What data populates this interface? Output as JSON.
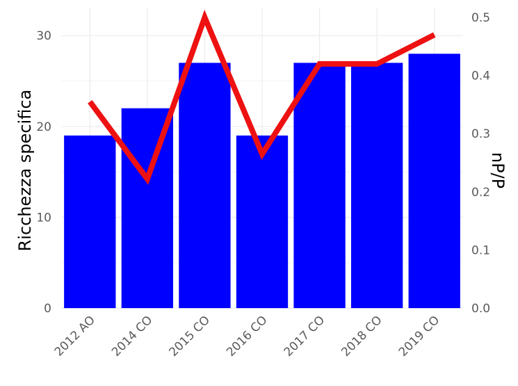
{
  "chart_data": {
    "type": "bar",
    "categories": [
      "2012 AO",
      "2014 CO",
      "2015 CO",
      "2016 CO",
      "2017 CO",
      "2018 CO",
      "2019 CO"
    ],
    "series": [
      {
        "values": [
          19,
          22,
          27,
          19,
          27,
          27,
          28
        ],
        "axis": "left",
        "kind": "bar",
        "color": "#0000ff"
      },
      {
        "values": [
          0.355,
          0.222,
          0.5,
          0.265,
          0.42,
          0.42,
          0.47
        ],
        "axis": "right",
        "kind": "line",
        "color": "#ee1111"
      }
    ],
    "ylabel": "Ricchezza specifica",
    "ylabel_right": "nP/P",
    "ylim": [
      0,
      33
    ],
    "ylim_right": [
      0,
      0.5156
    ],
    "yticks": [
      "0",
      "10",
      "20",
      "30"
    ],
    "yticks_values": [
      0,
      10,
      20,
      30
    ],
    "yticks_right": [
      "0.0",
      "0.1",
      "0.2",
      "0.3",
      "0.4",
      "0.5"
    ],
    "yticks_right_values": [
      0,
      0.1,
      0.2,
      0.3,
      0.4,
      0.5
    ],
    "grid": true,
    "legend": "none"
  }
}
